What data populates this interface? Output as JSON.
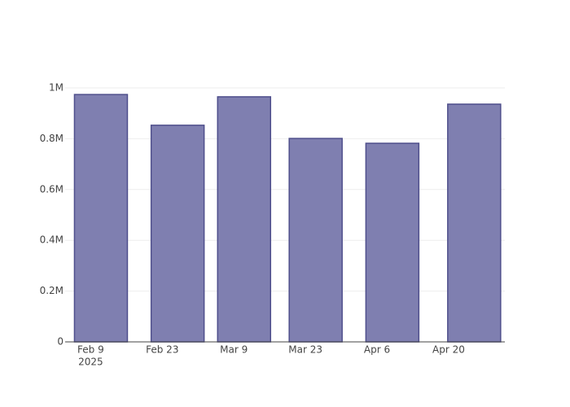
{
  "chart_data": {
    "type": "bar",
    "x": [
      "2025-02-11",
      "2025-02-26",
      "2025-03-11",
      "2025-03-25",
      "2025-04-09",
      "2025-04-25"
    ],
    "values": [
      974000,
      853000,
      965000,
      801000,
      782000,
      936000
    ],
    "color": "#7f7fb0",
    "edge_color": "#4f4f8c",
    "xlim": [
      "2025-02-04",
      "2025-05-01"
    ],
    "xticks": [
      {
        "value": "2025-02-09",
        "label": "Feb 9",
        "year": "2025"
      },
      {
        "value": "2025-02-23",
        "label": "Feb 23"
      },
      {
        "value": "2025-03-09",
        "label": "Mar 9"
      },
      {
        "value": "2025-03-23",
        "label": "Mar 23"
      },
      {
        "value": "2025-04-06",
        "label": "Apr 6"
      },
      {
        "value": "2025-04-20",
        "label": "Apr 20"
      }
    ],
    "ylim": [
      0,
      1025641
    ],
    "yticks": [
      0,
      {
        "value": 200000,
        "label": "0.2M"
      },
      {
        "value": 400000,
        "label": "0.4M"
      },
      {
        "value": 600000,
        "label": "0.6M"
      },
      {
        "value": 800000,
        "label": "0.8M"
      },
      {
        "value": 1000000,
        "label": "1M"
      }
    ],
    "grid": true
  }
}
